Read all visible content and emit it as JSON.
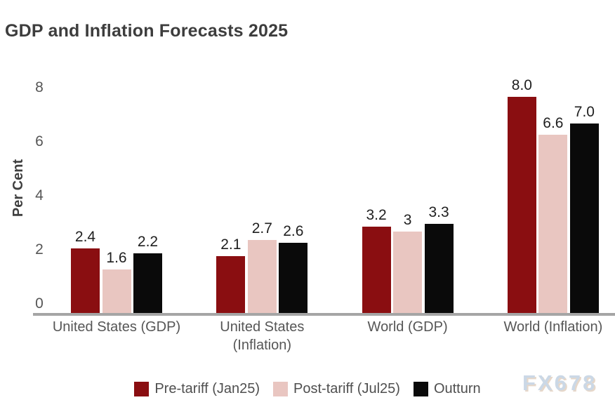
{
  "title": "GDP and Inflation Forecasts 2025",
  "watermark": "FX678",
  "chart_data": {
    "type": "bar",
    "title": "GDP and Inflation Forecasts 2025",
    "xlabel": "",
    "ylabel": "Per Cent",
    "ylim": [
      0,
      8.4
    ],
    "yticks": [
      0,
      2,
      4,
      6,
      8
    ],
    "grid": false,
    "legend_position": "bottom",
    "categories": [
      "United States (GDP)",
      "United States\n(Inflation)",
      "World (GDP)",
      "World (Inflation)"
    ],
    "series": [
      {
        "name": "Pre-tariff (Jan25)",
        "color": "#8a0e11",
        "values": [
          2.4,
          2.1,
          3.2,
          8.0
        ],
        "labels": [
          "2.4",
          "2.1",
          "3.2",
          "8.0"
        ]
      },
      {
        "name": "Post-tariff (Jul25)",
        "color": "#e9c6c1",
        "values": [
          1.6,
          2.7,
          3.0,
          6.6
        ],
        "labels": [
          "1.6",
          "2.7",
          "3",
          "6.6"
        ]
      },
      {
        "name": "Outturn",
        "color": "#0a0a0a",
        "values": [
          2.2,
          2.6,
          3.3,
          7.0
        ],
        "labels": [
          "2.2",
          "2.6",
          "3.3",
          "7.0"
        ]
      }
    ]
  }
}
